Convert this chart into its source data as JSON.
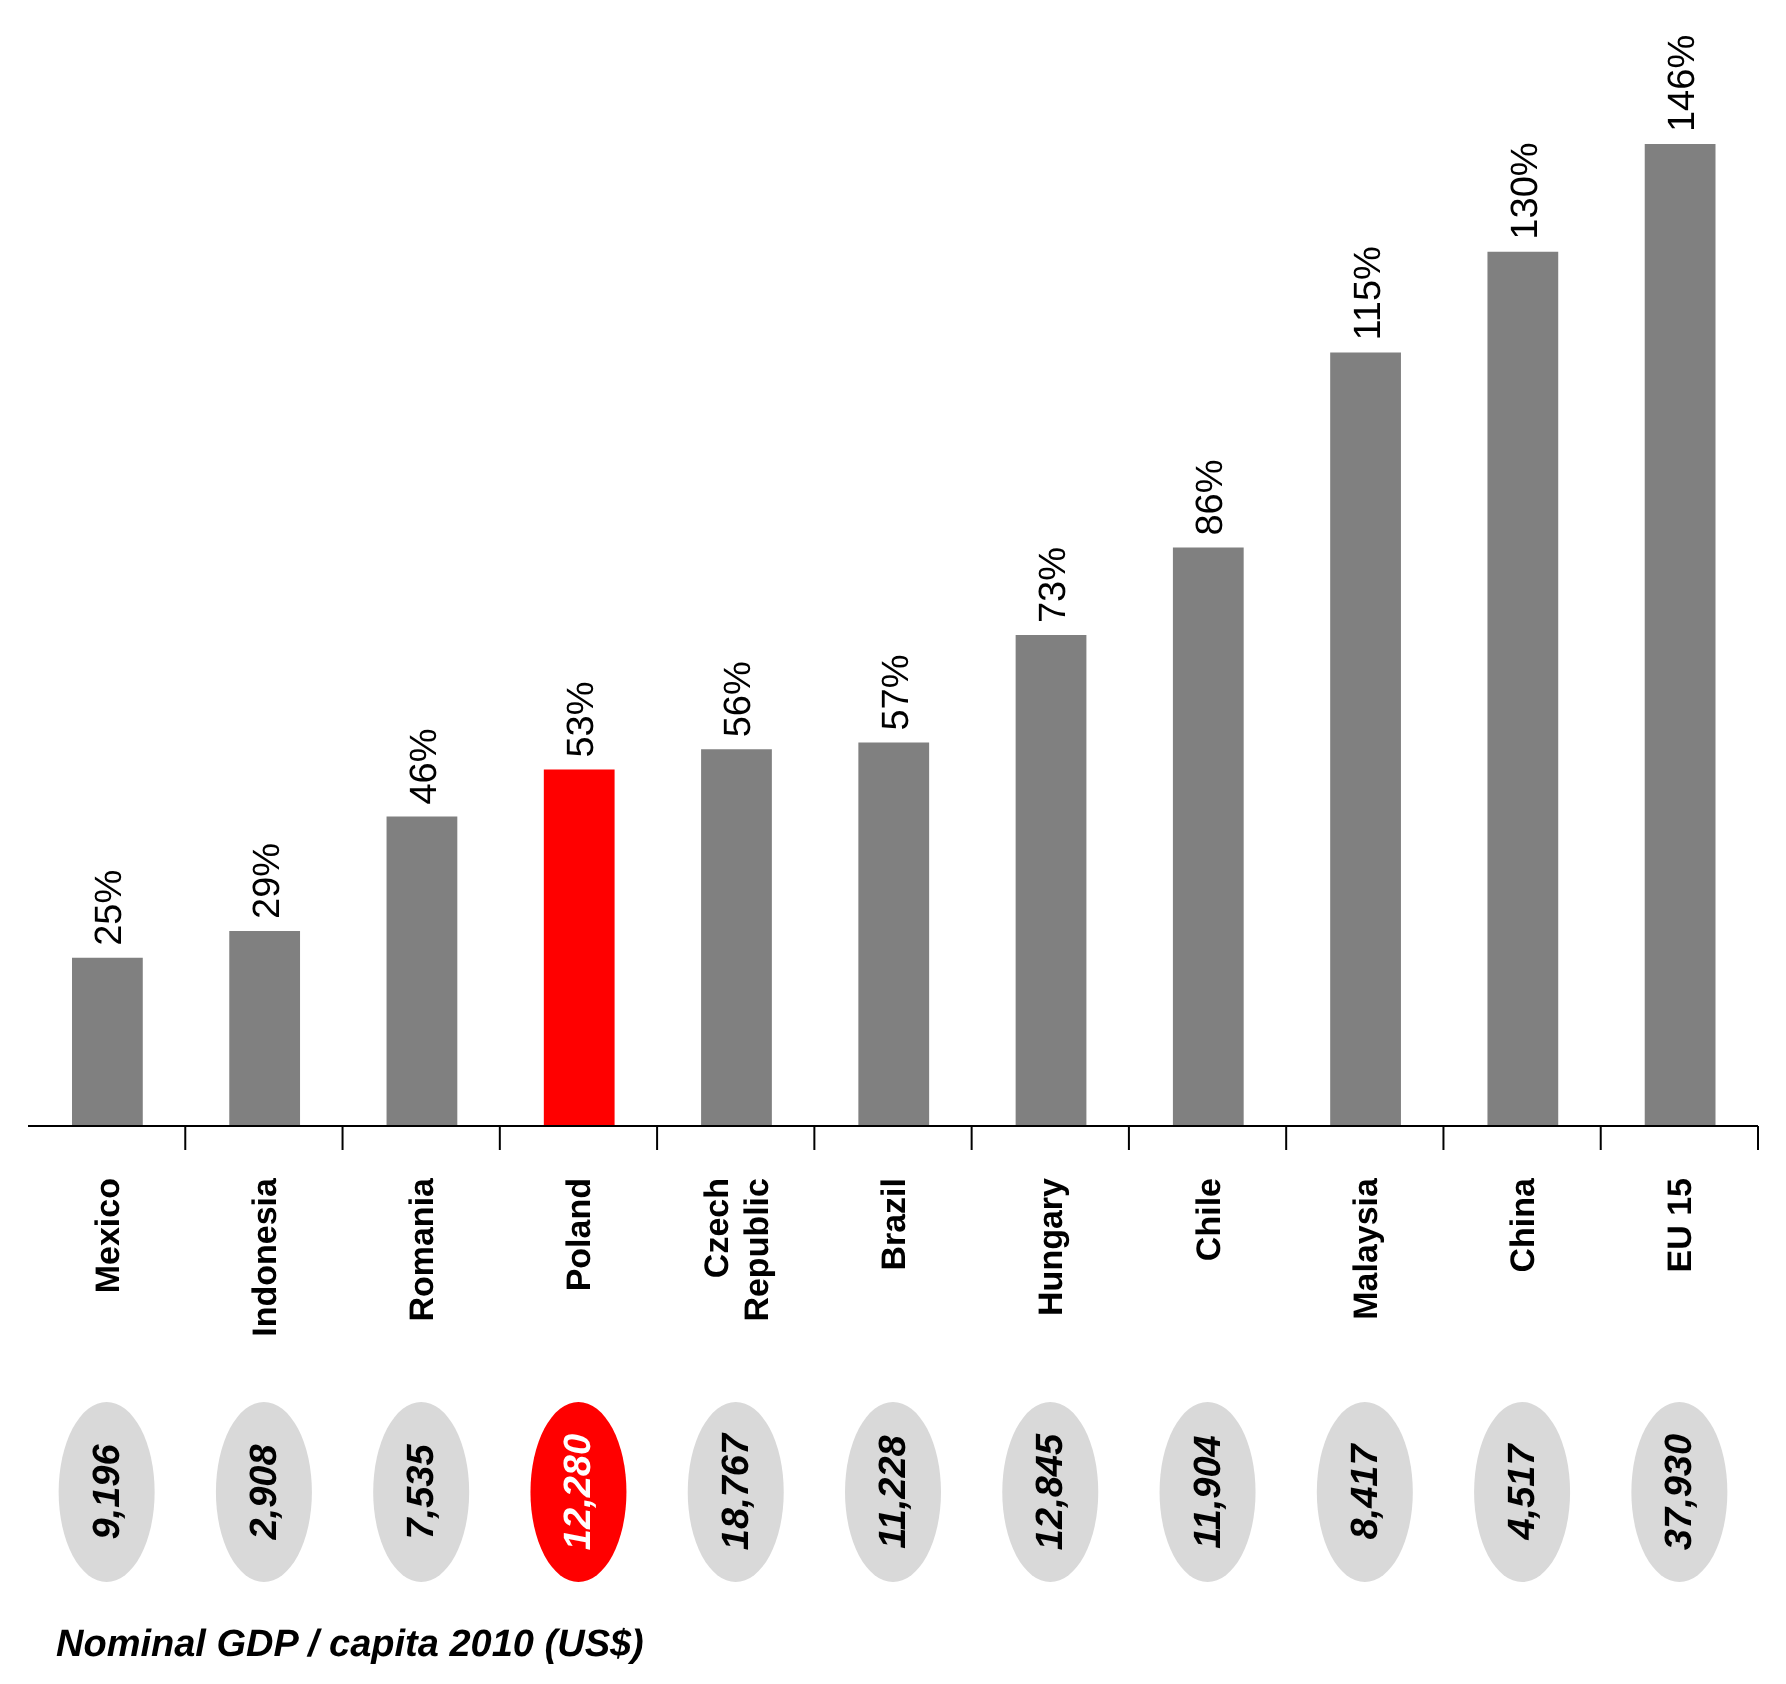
{
  "chart_data": {
    "type": "bar",
    "categories": [
      "Mexico",
      "Indonesia",
      "Romania",
      "Poland",
      "Czech Republic",
      "Brazil",
      "Hungary",
      "Chile",
      "Malaysia",
      "China",
      "EU 15"
    ],
    "values": [
      25,
      29,
      46,
      53,
      56,
      57,
      73,
      86,
      115,
      130,
      146
    ],
    "value_labels": [
      "25%",
      "29%",
      "46%",
      "53%",
      "56%",
      "57%",
      "73%",
      "86%",
      "115%",
      "130%",
      "146%"
    ],
    "colors": [
      "#808080",
      "#808080",
      "#808080",
      "#ff0000",
      "#808080",
      "#808080",
      "#808080",
      "#808080",
      "#808080",
      "#808080",
      "#808080"
    ],
    "annotations": [
      "9,196",
      "2,908",
      "7,535",
      "12,280",
      "18,767",
      "11,228",
      "12,845",
      "11,904",
      "8,417",
      "4,517",
      "37,930",
      "Nominal GDP / capita 2010 (US$)"
    ]
  }
}
